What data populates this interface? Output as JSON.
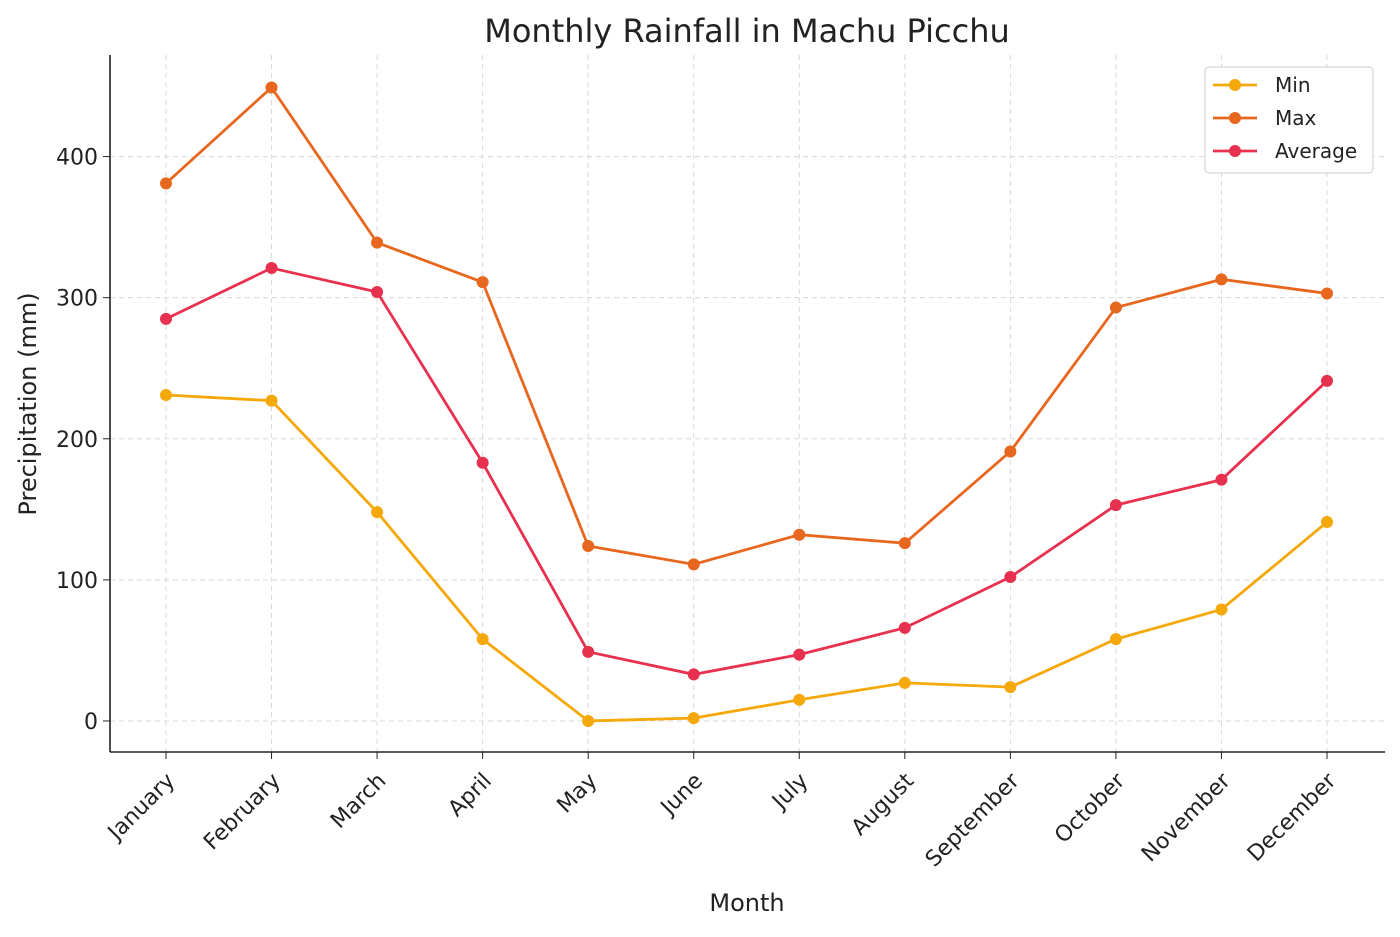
{
  "chart_data": {
    "type": "line",
    "title": "Monthly Rainfall in Machu Picchu",
    "xlabel": "Month",
    "ylabel": "Precipitation (mm)",
    "categories": [
      "January",
      "February",
      "March",
      "April",
      "May",
      "June",
      "July",
      "August",
      "September",
      "October",
      "November",
      "December"
    ],
    "ylim": [
      -22,
      472
    ],
    "yticks": [
      0,
      100,
      200,
      300,
      400
    ],
    "grid": true,
    "legend_position": "top-right",
    "series": [
      {
        "name": "Min",
        "color": "#f5a80a",
        "values": [
          231,
          227,
          148,
          58,
          0,
          2,
          15,
          27,
          24,
          58,
          79,
          141
        ]
      },
      {
        "name": "Max",
        "color": "#e8671e",
        "values": [
          381,
          449,
          339,
          311,
          124,
          111,
          132,
          126,
          191,
          293,
          313,
          303
        ]
      },
      {
        "name": "Average",
        "color": "#e8304f",
        "values": [
          285,
          321,
          304,
          183,
          49,
          33,
          47,
          66,
          102,
          153,
          171,
          241
        ]
      }
    ]
  }
}
